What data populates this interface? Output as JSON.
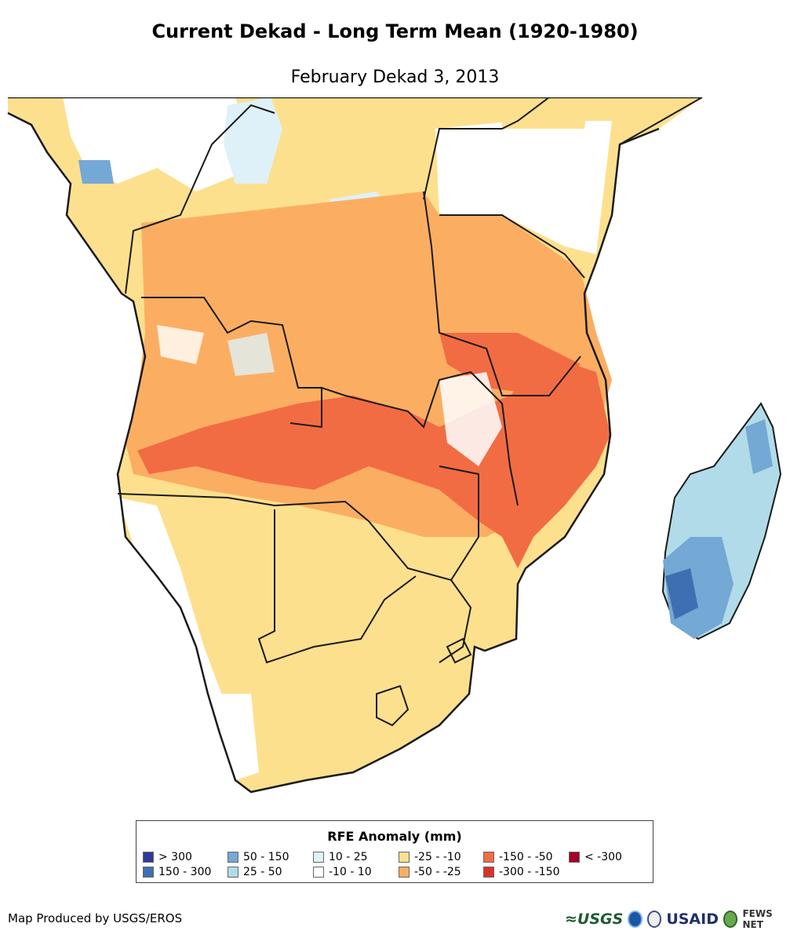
{
  "header": {
    "title": "Current Dekad - Long Term Mean (1920-1980)",
    "subtitle": "February Dekad 3, 2013"
  },
  "legend": {
    "title": "RFE Anomaly (mm)",
    "items": [
      {
        "label": "> 300",
        "color": "#2c3a9a"
      },
      {
        "label": "150 - 300",
        "color": "#3f6fb3"
      },
      {
        "label": "50 - 150",
        "color": "#74a8d5"
      },
      {
        "label": "25 - 50",
        "color": "#b2dbe9"
      },
      {
        "label": "10 - 25",
        "color": "#def1f8"
      },
      {
        "label": "-10 - 10",
        "color": "#ffffff"
      },
      {
        "label": "-25 - -10",
        "color": "#fde08e"
      },
      {
        "label": "-50 - -25",
        "color": "#fbae62"
      },
      {
        "label": "-150 - -50",
        "color": "#f26c43"
      },
      {
        "label": "-300 - -150",
        "color": "#d8322b"
      },
      {
        "label": "< -300",
        "color": "#a50026"
      }
    ]
  },
  "footer": {
    "credit": "Map Produced by USGS/EROS",
    "logos": {
      "usgs": "≈USGS",
      "usaid": "USAID",
      "fews": "FEWS NET"
    }
  }
}
